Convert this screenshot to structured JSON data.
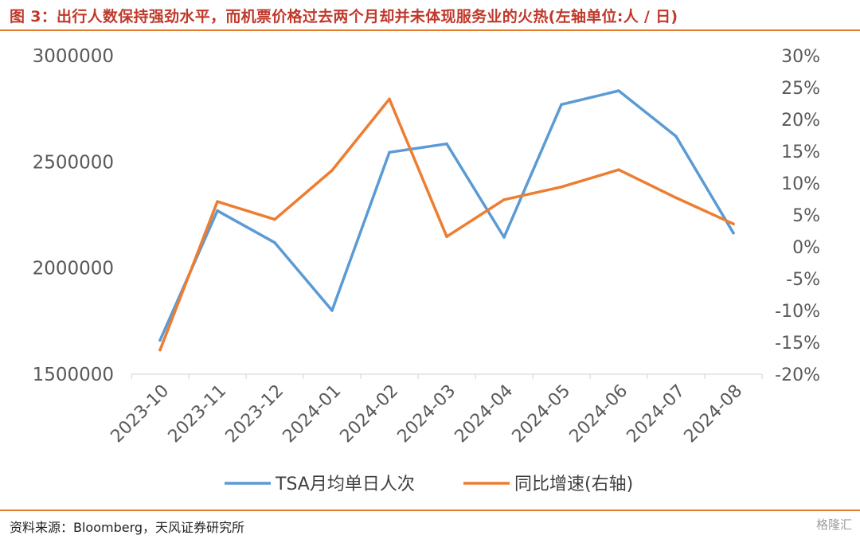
{
  "title": "图 3：出行人数保持强劲水平，而机票价格过去两个月却并未体现服务业的火热(左轴单位:人 / 日)",
  "source": "资料来源：Bloomberg，天风证券研究所",
  "watermark": "格隆汇",
  "colors": {
    "tsa": "#5b9bd5",
    "yoy": "#ed7d31",
    "accent": "#e07b2c"
  },
  "chart_data": {
    "type": "line",
    "title": "图 3：出行人数保持强劲水平，而机票价格过去两个月却并未体现服务业的火热(左轴单位:人 / 日)",
    "categories": [
      "2023-10",
      "2023-11",
      "2023-12",
      "2024-01",
      "2024-02",
      "2024-03",
      "2024-04",
      "2024-05",
      "2024-06",
      "2024-07",
      "2024-08"
    ],
    "left_axis": {
      "ylim": [
        1500000,
        3000000
      ],
      "ticks": [
        "1500000",
        "2000000",
        "2500000",
        "3000000"
      ]
    },
    "right_axis": {
      "ylim": [
        -20,
        30
      ],
      "unit": "%",
      "ticks": [
        "-20%",
        "-15%",
        "-10%",
        "-5%",
        "0%",
        "5%",
        "10%",
        "15%",
        "20%",
        "25%",
        "30%"
      ]
    },
    "series": [
      {
        "name": "TSA月均单日人次",
        "axis": "left",
        "values": [
          1660000,
          2270000,
          2120000,
          1800000,
          2545000,
          2585000,
          2145000,
          2770000,
          2835000,
          2620000,
          2165000
        ]
      },
      {
        "name": "同比增速(右轴)",
        "axis": "right",
        "values": [
          -16.2,
          7.1,
          4.3,
          12.0,
          23.2,
          1.6,
          7.4,
          9.4,
          12.1,
          7.7,
          3.6
        ]
      }
    ],
    "legend": "bottom",
    "grid": false
  }
}
